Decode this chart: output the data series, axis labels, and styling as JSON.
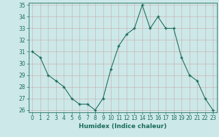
{
  "x": [
    0,
    1,
    2,
    3,
    4,
    5,
    6,
    7,
    8,
    9,
    10,
    11,
    12,
    13,
    14,
    15,
    16,
    17,
    18,
    19,
    20,
    21,
    22,
    23
  ],
  "y": [
    31.0,
    30.5,
    29.0,
    28.5,
    28.0,
    27.0,
    26.5,
    26.5,
    26.0,
    27.0,
    29.5,
    31.5,
    32.5,
    33.0,
    35.0,
    33.0,
    34.0,
    33.0,
    33.0,
    30.5,
    29.0,
    28.5,
    27.0,
    26.0
  ],
  "line_color": "#1a6b5a",
  "marker": "+",
  "marker_size": 4,
  "bg_color": "#cce8e8",
  "grid_color": "#b0d4d4",
  "xlabel": "Humidex (Indice chaleur)",
  "ylim": [
    26,
    35
  ],
  "yticks": [
    26,
    27,
    28,
    29,
    30,
    31,
    32,
    33,
    34,
    35
  ],
  "xticks": [
    0,
    1,
    2,
    3,
    4,
    5,
    6,
    7,
    8,
    9,
    10,
    11,
    12,
    13,
    14,
    15,
    16,
    17,
    18,
    19,
    20,
    21,
    22,
    23
  ],
  "title_fontsize": 7,
  "label_fontsize": 6.5,
  "tick_fontsize": 5.5
}
